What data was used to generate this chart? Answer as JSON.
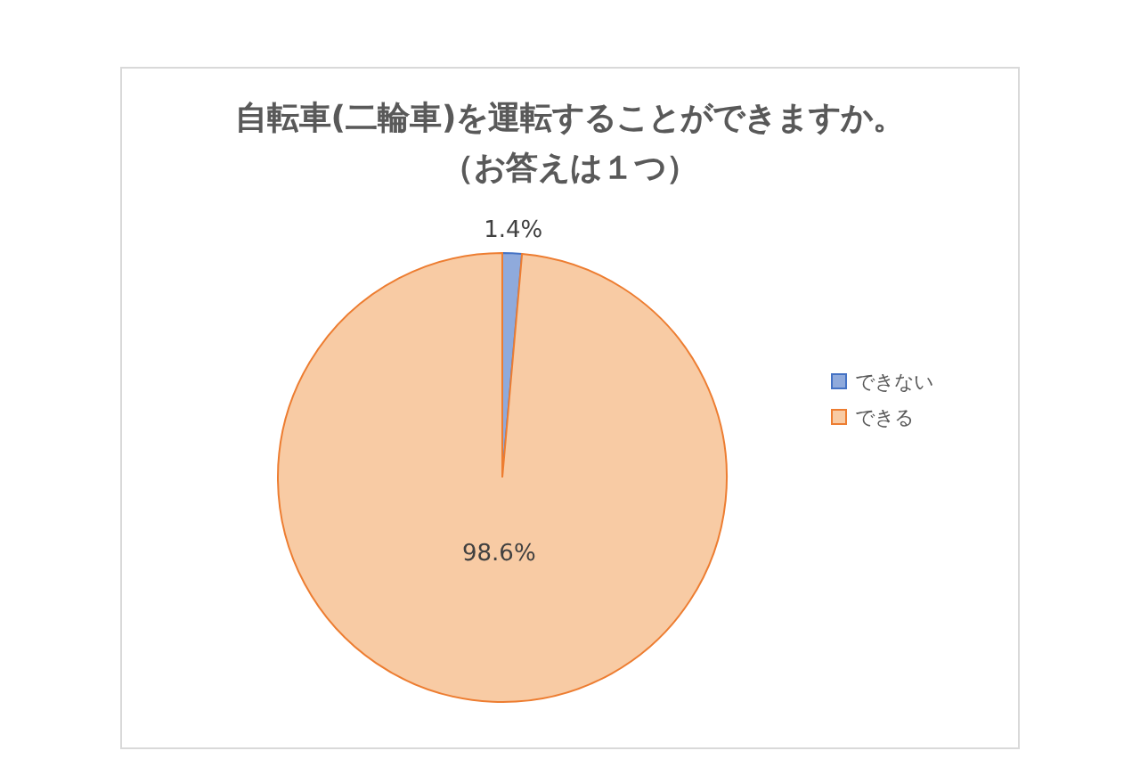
{
  "chart_data": {
    "type": "pie",
    "title": "自転車(二輪車)を運転することができますか。",
    "subtitle": "（お答えは１つ）",
    "categories": [
      "できない",
      "できる"
    ],
    "values": [
      1.4,
      98.6
    ],
    "colors": [
      "#8faadc",
      "#f8cba4"
    ],
    "value_labels": [
      "1.4%",
      "98.6%"
    ],
    "legend": "right"
  }
}
